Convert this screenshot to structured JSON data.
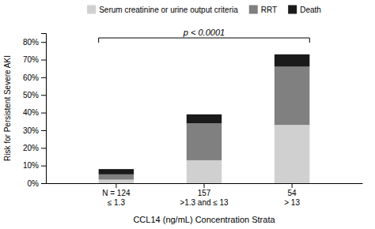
{
  "chart_data": {
    "type": "bar",
    "stacked": true,
    "categories": [
      "N = 124\n≤ 1.3",
      "157\n>1.3 and ≤ 13",
      "54\n> 13"
    ],
    "series": [
      {
        "name": "Serum creatinine or urine output criteria",
        "color": "#d0d0d0",
        "values": [
          2,
          13,
          33
        ]
      },
      {
        "name": "RRT",
        "color": "#808080",
        "values": [
          3,
          21,
          33
        ]
      },
      {
        "name": "Death",
        "color": "#1a1a1a",
        "values": [
          3,
          5,
          7
        ]
      }
    ],
    "xlabel": "CCL14 (ng/mL) Concentration Strata",
    "ylabel": "Risk for Persistent Severe AKI",
    "ylim": [
      0,
      85
    ],
    "yticks": [
      {
        "value": 0,
        "label": "0%"
      },
      {
        "value": 10,
        "label": "10%"
      },
      {
        "value": 20,
        "label": "20%"
      },
      {
        "value": 30,
        "label": "30%"
      },
      {
        "value": 40,
        "label": "40%"
      },
      {
        "value": 50,
        "label": "50%"
      },
      {
        "value": 60,
        "label": "60%"
      },
      {
        "value": 70,
        "label": "70%"
      },
      {
        "value": 80,
        "label": "80%"
      }
    ],
    "annotations": [
      {
        "text": "p < 0.0001"
      }
    ],
    "legend": "top",
    "grid": false
  }
}
